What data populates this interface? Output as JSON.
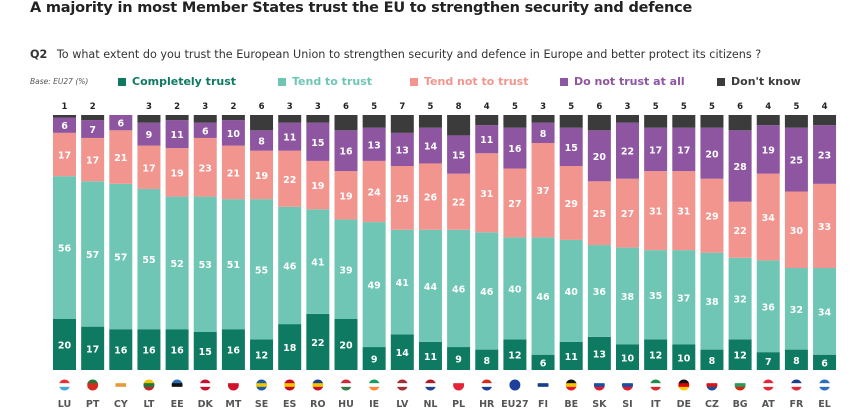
{
  "title": "A majority in most Member States trust the EU to strengthen security and defence",
  "question": {
    "code": "Q2",
    "text": "To what extent do you trust the European Union to strengthen security and defence in Europe and better protect its citizens ?"
  },
  "base_label": "Base: EU27 (%)",
  "chart_data": {
    "type": "bar",
    "stacked": true,
    "orientation": "vertical",
    "unit": "%",
    "title": "A majority in most Member States trust the EU to strengthen security and defence",
    "subtitle": "Q2 To what extent do you trust the European Union to strengthen security and defence in Europe and better protect its citizens ?",
    "legend_position": "top",
    "ylim": [
      0,
      100
    ],
    "categories": [
      "LU",
      "PT",
      "CY",
      "LT",
      "EE",
      "DK",
      "MT",
      "SE",
      "ES",
      "RO",
      "HU",
      "IE",
      "LV",
      "NL",
      "PL",
      "HR",
      "EU27",
      "FI",
      "BE",
      "SK",
      "SI",
      "IT",
      "DE",
      "CZ",
      "BG",
      "AT",
      "FR",
      "EL"
    ],
    "series": [
      {
        "name": "Completely trust",
        "color": "#0e7a62",
        "label_color": "#ffffff",
        "values": [
          20,
          17,
          16,
          16,
          16,
          15,
          16,
          12,
          18,
          22,
          20,
          9,
          14,
          11,
          9,
          8,
          12,
          6,
          11,
          13,
          10,
          12,
          10,
          8,
          12,
          7,
          8,
          6
        ]
      },
      {
        "name": "Tend to trust",
        "color": "#6fc6b5",
        "label_color": "#ffffff",
        "values": [
          56,
          57,
          57,
          55,
          52,
          53,
          51,
          55,
          46,
          41,
          39,
          49,
          41,
          44,
          46,
          46,
          40,
          46,
          40,
          36,
          38,
          35,
          37,
          38,
          32,
          36,
          32,
          34
        ]
      },
      {
        "name": "Tend not to trust",
        "color": "#f2958f",
        "label_color": "#ffffff",
        "values": [
          17,
          17,
          21,
          17,
          19,
          23,
          21,
          19,
          22,
          19,
          19,
          24,
          25,
          26,
          22,
          31,
          27,
          37,
          29,
          25,
          27,
          31,
          31,
          29,
          22,
          34,
          30,
          33
        ]
      },
      {
        "name": "Do not trust at all",
        "color": "#8e55a0",
        "label_color": "#ffffff",
        "values": [
          6,
          7,
          6,
          9,
          11,
          6,
          10,
          8,
          11,
          15,
          16,
          13,
          13,
          14,
          15,
          11,
          16,
          8,
          15,
          20,
          22,
          17,
          17,
          20,
          28,
          19,
          25,
          23
        ]
      },
      {
        "name": "Don't know",
        "color": "#3b3b3b",
        "label_color": "#222222",
        "label_position": "above",
        "values": [
          1,
          2,
          0,
          3,
          2,
          3,
          2,
          6,
          3,
          3,
          6,
          5,
          7,
          5,
          8,
          4,
          5,
          3,
          5,
          6,
          3,
          5,
          5,
          5,
          6,
          4,
          5,
          4
        ]
      }
    ]
  },
  "legend": [
    {
      "label": "Completely trust",
      "color": "#0e7a62"
    },
    {
      "label": "Tend to trust",
      "color": "#6fc6b5"
    },
    {
      "label": "Tend not to trust",
      "color": "#f2958f"
    },
    {
      "label": "Do not trust at all",
      "color": "#8e55a0"
    },
    {
      "label": "Don't know",
      "color": "#3b3b3b"
    }
  ],
  "flags": {
    "LU": [
      "#e8333b",
      "#ffffff",
      "#3fa9e0"
    ],
    "PT": [
      "#1e7a33",
      "#d52b1e",
      "#d52b1e"
    ],
    "CY": [
      "#ffffff",
      "#e39b3b",
      "#ffffff"
    ],
    "LT": [
      "#f5c400",
      "#1e7a3a",
      "#c1272d"
    ],
    "EE": [
      "#2a6ebb",
      "#111111",
      "#ffffff"
    ],
    "DK": [
      "#c8102e",
      "#ffffff",
      "#c8102e"
    ],
    "MT": [
      "#ffffff",
      "#cf142b",
      "#cf142b"
    ],
    "SE": [
      "#1a5fa6",
      "#f5c400",
      "#1a5fa6"
    ],
    "ES": [
      "#c60b1e",
      "#f5c400",
      "#c60b1e"
    ],
    "RO": [
      "#1a3f8f",
      "#f5c400",
      "#c8102e"
    ],
    "HU": [
      "#ce2939",
      "#ffffff",
      "#3a7a44"
    ],
    "IE": [
      "#169b62",
      "#ffffff",
      "#ff883e"
    ],
    "LV": [
      "#9e3039",
      "#ffffff",
      "#9e3039"
    ],
    "NL": [
      "#ae1c28",
      "#ffffff",
      "#21468b"
    ],
    "PL": [
      "#ffffff",
      "#e5243b",
      "#e5243b"
    ],
    "HR": [
      "#d52b1e",
      "#ffffff",
      "#1b3f94"
    ],
    "EU27": [
      "#1f3f9e",
      "#1f3f9e",
      "#1f3f9e"
    ],
    "FI": [
      "#ffffff",
      "#1a3f8f",
      "#ffffff"
    ],
    "BE": [
      "#111111",
      "#f5c400",
      "#e21b2a"
    ],
    "SK": [
      "#ffffff",
      "#1a4fa3",
      "#e21b2a"
    ],
    "SI": [
      "#ffffff",
      "#1a4fa3",
      "#e21b2a"
    ],
    "IT": [
      "#1e8f4a",
      "#ffffff",
      "#d52b2e"
    ],
    "DE": [
      "#111111",
      "#dd0000",
      "#ffce00"
    ],
    "CZ": [
      "#ffffff",
      "#d7141a",
      "#1a4f9a"
    ],
    "BG": [
      "#ffffff",
      "#2a9a5a",
      "#d62612"
    ],
    "AT": [
      "#e2283a",
      "#ffffff",
      "#e2283a"
    ],
    "FR": [
      "#1a3f8f",
      "#ffffff",
      "#e2283a"
    ],
    "EL": [
      "#2c6fbf",
      "#ffffff",
      "#2c6fbf"
    ]
  }
}
